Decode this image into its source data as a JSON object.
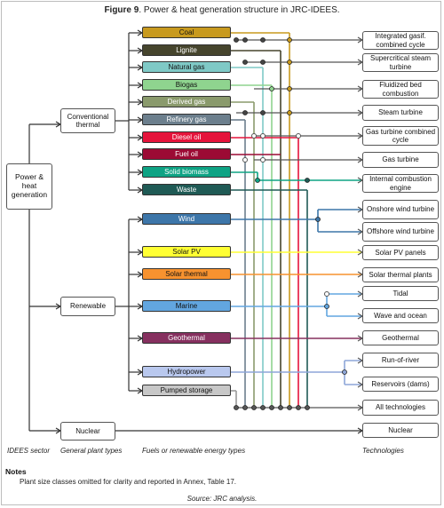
{
  "title": {
    "label": "Figure 9",
    "text": ". Power & heat generation structure in JRC-IDEES."
  },
  "root": "Power & heat generation",
  "general": [
    {
      "name": "Conventional thermal"
    },
    {
      "name": "Renewable"
    },
    {
      "name": "Nuclear"
    }
  ],
  "fuels": [
    {
      "name": "Coal",
      "color": "#c89a1e",
      "text": "#111111"
    },
    {
      "name": "Lignite",
      "color": "#46452d",
      "text": "#ffffff"
    },
    {
      "name": "Natural gas",
      "color": "#7fc9c6",
      "text": "#111111"
    },
    {
      "name": "Biogas",
      "color": "#8fd48f",
      "text": "#111111"
    },
    {
      "name": "Derived gas",
      "color": "#8a9a6c",
      "text": "#ffffff"
    },
    {
      "name": "Refinery gas",
      "color": "#6c7f8d",
      "text": "#ffffff"
    },
    {
      "name": "Diesel oil",
      "color": "#e5133b",
      "text": "#ffffff"
    },
    {
      "name": "Fuel oil",
      "color": "#9c0a34",
      "text": "#ffffff"
    },
    {
      "name": "Solid biomass",
      "color": "#0ea384",
      "text": "#ffffff"
    },
    {
      "name": "Waste",
      "color": "#1f5a55",
      "text": "#ffffff"
    },
    {
      "name": "Wind",
      "color": "#3d76a9",
      "text": "#ffffff"
    },
    {
      "name": "Solar PV",
      "color": "#ffff33",
      "text": "#111111"
    },
    {
      "name": "Solar thermal",
      "color": "#f7922f",
      "text": "#111111"
    },
    {
      "name": "Marine",
      "color": "#62a6e0",
      "text": "#111111"
    },
    {
      "name": "Geothermal",
      "color": "#86305f",
      "text": "#ffffff"
    },
    {
      "name": "Hydropower",
      "color": "#b9c8ee",
      "text": "#111111"
    },
    {
      "name": "Pumped storage",
      "color": "#c7c7c7",
      "text": "#111111"
    }
  ],
  "technologies": [
    {
      "name": "Integrated gasif. combined cycle"
    },
    {
      "name": "Supercritical steam turbine"
    },
    {
      "name": "Fluidized bed combustion"
    },
    {
      "name": "Steam turbine"
    },
    {
      "name": "Gas turbine combined cycle"
    },
    {
      "name": "Gas turbine"
    },
    {
      "name": "Internal combustion engine"
    },
    {
      "name": "Onshore wind turbine"
    },
    {
      "name": "Offshore wind turbine"
    },
    {
      "name": "Solar PV panels"
    },
    {
      "name": "Solar thermal plants"
    },
    {
      "name": "Tidal"
    },
    {
      "name": "Wave and ocean"
    },
    {
      "name": "Geothermal"
    },
    {
      "name": "Run-of-river"
    },
    {
      "name": "Reservoirs (dams)"
    },
    {
      "name": "All technologies"
    },
    {
      "name": "Nuclear"
    }
  ],
  "footer": {
    "col1": "IDEES sector",
    "col2": "General plant types",
    "col3": "Fuels or renewable energy types",
    "col4": "Technologies"
  },
  "notes": {
    "heading": "Notes",
    "text": "Plant size classes omitted for clarity and reported in Annex, Table 17."
  },
  "source": "Source: JRC analysis."
}
